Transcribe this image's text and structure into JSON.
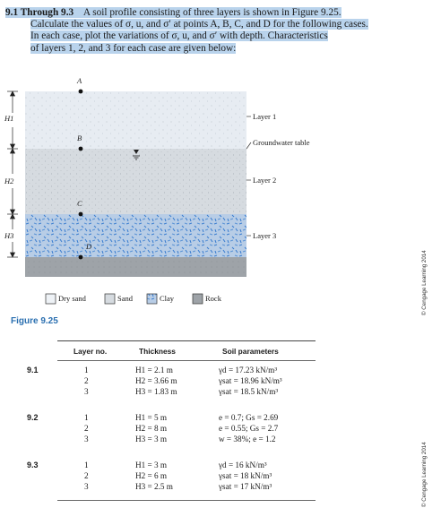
{
  "problem": {
    "number": "9.1 Through 9.3",
    "lines": [
      "A soil profile consisting of three layers is shown in Figure 9.25.",
      "Calculate the values of σ, u, and σ′ at points A, B, C, and D for the following cases.",
      "In each case, plot the variations of σ, u, and σ′ with depth. Characteristics",
      "of layers 1, 2, and 3 for each case are given below:"
    ]
  },
  "figure": {
    "points": [
      "A",
      "B",
      "C",
      "D"
    ],
    "heights": [
      "H1",
      "H2",
      "H3"
    ],
    "layer_labels": [
      "Layer 1",
      "Groundwater table",
      "Layer 2",
      "Layer 3"
    ],
    "legend": [
      "Dry sand",
      "Sand",
      "Clay",
      "Rock"
    ],
    "caption": "Figure 9.25",
    "credit": "© Cengage Learning 2014",
    "colors": {
      "layer1": "#e7ecf2",
      "layer2": "#d6dbe0",
      "clay": "#b8cde6",
      "clay_fleck": "#3d7fd0",
      "rock": "#9ea3a8"
    }
  },
  "table": {
    "headers": [
      "Layer no.",
      "Thickness",
      "Soil parameters"
    ],
    "credit": "© Cengage Learning 2014",
    "rows": [
      {
        "case": "9.1",
        "layer": "1",
        "thickness": "H1 = 2.1 m",
        "params": "γd = 17.23 kN/m³"
      },
      {
        "case": "",
        "layer": "2",
        "thickness": "H2 = 3.66 m",
        "params": "γsat = 18.96 kN/m³"
      },
      {
        "case": "",
        "layer": "3",
        "thickness": "H3 = 1.83 m",
        "params": "γsat = 18.5 kN/m³"
      },
      {
        "case": "9.2",
        "layer": "1",
        "thickness": "H1 = 5 m",
        "params": "e = 0.7; Gs = 2.69"
      },
      {
        "case": "",
        "layer": "2",
        "thickness": "H2 = 8 m",
        "params": "e = 0.55; Gs = 2.7"
      },
      {
        "case": "",
        "layer": "3",
        "thickness": "H3 = 3 m",
        "params": "w = 38%; e = 1.2"
      },
      {
        "case": "9.3",
        "layer": "1",
        "thickness": "H1 = 3 m",
        "params": "γd = 16 kN/m³"
      },
      {
        "case": "",
        "layer": "2",
        "thickness": "H2 = 6 m",
        "params": "γsat = 18 kN/m³"
      },
      {
        "case": "",
        "layer": "3",
        "thickness": "H3 = 2.5 m",
        "params": "γsat = 17 kN/m³"
      }
    ]
  }
}
